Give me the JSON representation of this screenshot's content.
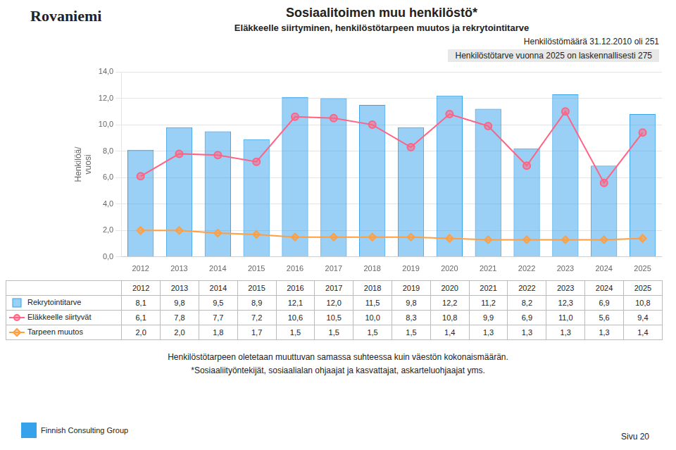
{
  "chart_data": {
    "type": "bar",
    "title": "Sosiaalitoimen muu henkilöstö*",
    "subtitle": "Eläkkeelle siirtyminen, henkilöstötarpeen muutos ja rekrytointitarve",
    "annotations": [
      "Rovaniemi",
      "Henkilöstömäärä 31.12.2010 oli 251",
      "Henkilöstötarve vuonna 2025 on laskennallisesti 275",
      "Henkilöstötarpeen oletetaan muuttuvan samassa suhteessa kuin väestön kokonaismäärän.",
      "*Sosiaaliityöntekijät, sosiaalialan ohjaajat ja kasvattajat, askarteluohjaajat yms.",
      "Finnish Consulting Group",
      "Sivu 20"
    ],
    "ylabel": "Henkilöä/\nvuosi",
    "categories": [
      "2012",
      "2013",
      "2014",
      "2015",
      "2016",
      "2017",
      "2018",
      "2019",
      "2020",
      "2021",
      "2022",
      "2023",
      "2024",
      "2025"
    ],
    "series": [
      {
        "name": "Rekrytointitarve",
        "type": "bar",
        "values": [
          8.1,
          9.8,
          9.5,
          8.9,
          12.1,
          12.0,
          11.5,
          9.8,
          12.2,
          11.2,
          8.2,
          12.3,
          6.9,
          10.8
        ],
        "value_labels": [
          "8,1",
          "9,8",
          "9,5",
          "8,9",
          "12,1",
          "12,0",
          "11,5",
          "9,8",
          "12,2",
          "11,2",
          "8,2",
          "12,3",
          "6,9",
          "10,8"
        ]
      },
      {
        "name": "Eläkkeelle siirtyvät",
        "type": "line",
        "marker": "circle",
        "values": [
          6.1,
          7.8,
          7.7,
          7.2,
          10.6,
          10.5,
          10.0,
          8.3,
          10.8,
          9.9,
          6.9,
          11.0,
          5.6,
          9.4
        ],
        "value_labels": [
          "6,1",
          "7,8",
          "7,7",
          "7,2",
          "10,6",
          "10,5",
          "10,0",
          "8,3",
          "10,8",
          "9,9",
          "6,9",
          "11,0",
          "5,6",
          "9,4"
        ]
      },
      {
        "name": "Tarpeen muutos",
        "type": "line",
        "marker": "diamond",
        "values": [
          2.0,
          2.0,
          1.8,
          1.7,
          1.5,
          1.5,
          1.5,
          1.5,
          1.4,
          1.3,
          1.3,
          1.3,
          1.3,
          1.4
        ],
        "value_labels": [
          "2,0",
          "2,0",
          "1,8",
          "1,7",
          "1,5",
          "1,5",
          "1,5",
          "1,5",
          "1,4",
          "1,3",
          "1,3",
          "1,3",
          "1,3",
          "1,4"
        ]
      }
    ],
    "ylim": [
      0.0,
      14.0
    ],
    "yticks": [
      {
        "value": 0.0,
        "label": "0,0"
      },
      {
        "value": 2.0,
        "label": "2,0"
      },
      {
        "value": 4.0,
        "label": "4,0"
      },
      {
        "value": 6.0,
        "label": "6,0"
      },
      {
        "value": 8.0,
        "label": "8,0"
      },
      {
        "value": 10.0,
        "label": "10,0"
      },
      {
        "value": 12.0,
        "label": "12,0"
      },
      {
        "value": 14.0,
        "label": "14,0"
      }
    ],
    "grid": "y"
  }
}
